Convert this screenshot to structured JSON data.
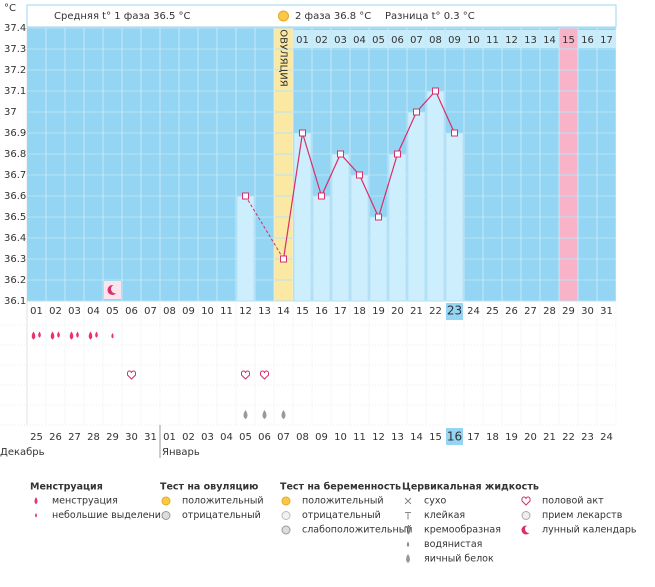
{
  "chart_data": {
    "type": "line",
    "y_unit": "°C",
    "phase1_label": "Средняя t° 1 фаза 36.5 °C",
    "phase2_label": "2 фаза 36.8 °C",
    "difference_label": "Разница t° 0.3 °C",
    "ovulation_label": "ОВУЛЯЦИЯ",
    "categories": [
      "01",
      "02",
      "03",
      "04",
      "05",
      "06",
      "07",
      "08",
      "09",
      "10",
      "11",
      "12",
      "13",
      "14",
      "15",
      "16",
      "17",
      "18",
      "19",
      "20",
      "21",
      "22",
      "23",
      "24",
      "25",
      "26",
      "27",
      "28",
      "29",
      "30",
      "31"
    ],
    "values": [
      null,
      null,
      null,
      null,
      null,
      null,
      null,
      null,
      null,
      null,
      null,
      36.6,
      null,
      36.3,
      36.9,
      36.6,
      36.8,
      36.7,
      36.5,
      36.8,
      37,
      37.1,
      36.9,
      null,
      null,
      null,
      null,
      null,
      null,
      null,
      null
    ],
    "color": "#d62f6b",
    "ylim": [
      36.1,
      37.4
    ],
    "yticks": [
      36.1,
      36.2,
      36.3,
      36.4,
      36.5,
      36.6,
      36.7,
      36.8,
      36.9,
      37,
      37.1,
      37.2,
      37.3,
      37.4
    ],
    "grid": true,
    "ovulation_index": 13,
    "today_index": 22,
    "predicted_period_index": 28,
    "post_ovulation_days": [
      "01",
      "02",
      "03",
      "04",
      "05",
      "06",
      "07",
      "08",
      "09",
      "10",
      "11",
      "12",
      "13",
      "14",
      "15",
      "16",
      "17"
    ],
    "cycle_days": [
      "25",
      "26",
      "27",
      "28",
      "29",
      "30",
      "31",
      "01",
      "02",
      "03",
      "04",
      "05",
      "06",
      "07",
      "08",
      "09",
      "10",
      "11",
      "12",
      "13",
      "14",
      "15",
      "16",
      "17",
      "18",
      "19",
      "20",
      "21",
      "22",
      "23",
      "24"
    ],
    "weekend_indices": [
      3,
      4,
      10,
      11,
      17,
      18,
      24,
      25
    ],
    "months": [
      {
        "label": "Декабрь",
        "start": 0
      },
      {
        "label": "Январь",
        "start": 7
      }
    ],
    "menstruation_indices": [
      0,
      1,
      2,
      3
    ],
    "spotting_indices": [
      4
    ],
    "intercourse_indices": [
      5,
      11,
      12
    ],
    "egg_white_indices": [
      11,
      12,
      13
    ],
    "moon_indices": [
      4
    ]
  },
  "legend": [
    {
      "title": "Менструация",
      "items": [
        "менструация",
        "небольшие выделения"
      ]
    },
    {
      "title": "Тест на овуляцию",
      "items": [
        "положительный",
        "отрицательный"
      ]
    },
    {
      "title": "Тест на беременность",
      "items": [
        "положительный",
        "отрицательный",
        "слабоположительный"
      ]
    },
    {
      "title": "Цервикальная жидкость",
      "items": [
        "сухо",
        "клейкая",
        "кремообразная",
        "водянистая",
        "яичный белок"
      ]
    },
    {
      "items": [
        "половой акт",
        "прием лекарств",
        "лунный календарь"
      ]
    }
  ]
}
